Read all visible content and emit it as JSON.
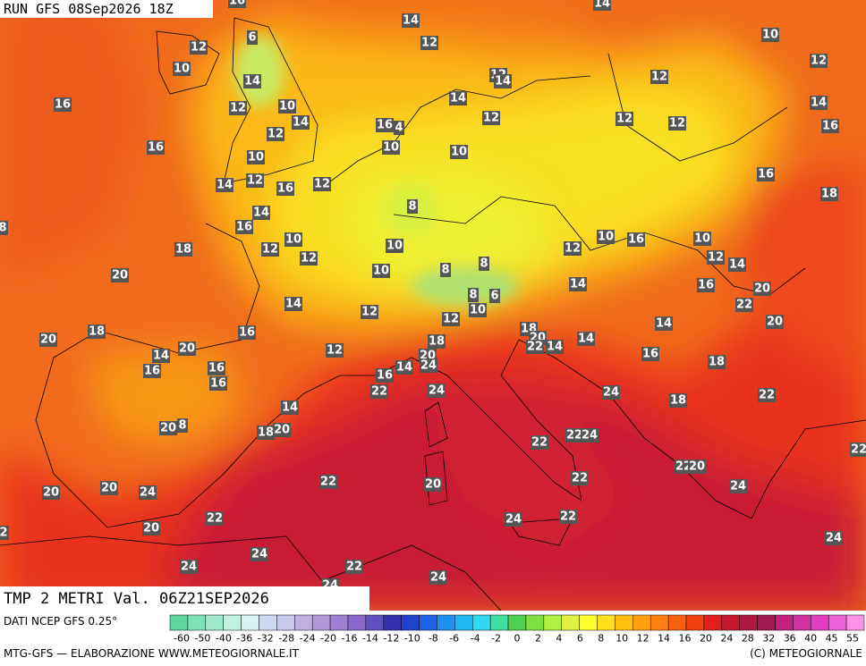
{
  "header": {
    "run": "RUN GFS 08Sep2026 18Z",
    "valid": "TMP 2 METRI Val. 06Z21SEP2026"
  },
  "footer": {
    "source": "DATI NCEP GFS 0.25°",
    "credit": "MTG-GFS — ELABORAZIONE WWW.METEOGIORNALE.IT",
    "copyright": "(C) METEOGIORNALE"
  },
  "colorbar": {
    "labels": [
      -60,
      -50,
      -40,
      -36,
      -32,
      -28,
      -24,
      -20,
      -16,
      -14,
      -12,
      -10,
      -8,
      -6,
      -4,
      -2,
      0,
      2,
      4,
      6,
      8,
      10,
      12,
      14,
      16,
      20,
      24,
      28,
      32,
      36,
      40,
      45,
      55
    ],
    "colors": [
      "#5fd6a0",
      "#7fe0b8",
      "#a0e8cc",
      "#c0f0e0",
      "#d8f0f0",
      "#d0d8f0",
      "#c8c8ec",
      "#c0b0e0",
      "#b098d8",
      "#a080d0",
      "#8868c8",
      "#6050c0",
      "#3030b0",
      "#2040d0",
      "#2060e8",
      "#2090f0",
      "#20b8f0",
      "#30d8f0",
      "#40e0a0",
      "#50d050",
      "#80e040",
      "#b0f040",
      "#e0f040",
      "#ffff30",
      "#ffe020",
      "#ffc010",
      "#ffa010",
      "#ff8010",
      "#f86010",
      "#f04010",
      "#e02020",
      "#c81830",
      "#b01840",
      "#a01850",
      "#c02080",
      "#d030a0",
      "#e040c0",
      "#f060d8",
      "#ff90e8"
    ]
  },
  "stations": [
    14,
    12,
    6,
    12,
    10,
    14,
    14,
    12,
    14,
    16,
    12,
    10,
    14,
    12,
    12,
    12,
    10,
    12,
    12,
    14,
    16,
    16,
    4,
    12,
    10,
    16,
    10,
    10,
    16,
    18,
    14,
    12,
    16,
    12,
    8,
    14,
    16,
    12,
    10,
    12,
    10,
    10,
    8,
    8,
    18,
    12,
    10,
    16,
    10,
    12,
    14,
    20,
    14,
    12,
    8,
    6,
    10,
    12,
    14,
    16,
    20,
    22,
    20,
    20,
    18,
    14,
    20,
    16,
    12,
    18,
    18,
    20,
    22,
    14,
    14,
    14,
    16,
    18,
    16,
    16,
    16,
    16,
    14,
    20,
    24,
    22,
    24,
    24,
    18,
    22,
    14,
    20,
    8,
    18,
    20,
    22,
    22,
    24,
    22,
    22,
    20,
    20,
    20,
    22,
    24,
    22,
    20,
    24,
    20,
    22,
    24,
    22,
    24,
    24,
    24,
    22,
    24,
    24,
    2,
    8,
    14,
    16
  ]
}
